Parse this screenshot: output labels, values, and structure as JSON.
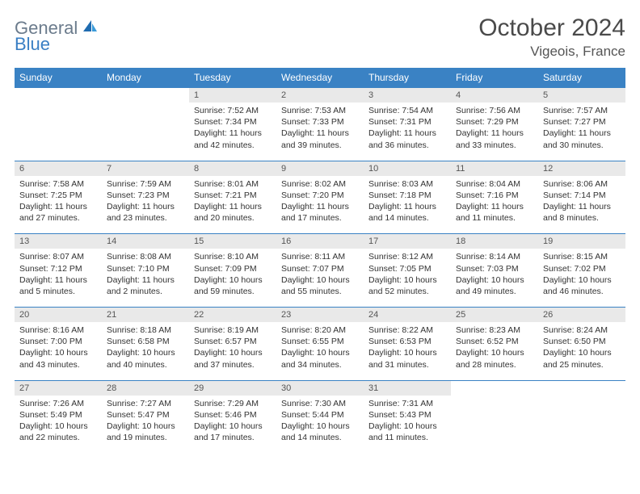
{
  "logo": {
    "text1": "General",
    "text2": "Blue",
    "color1": "#6b7b8c",
    "color2": "#3a7fc4"
  },
  "title": "October 2024",
  "location": "Vigeois, France",
  "header_bg": "#3a82c4",
  "daynum_bg": "#e9e9e9",
  "divider_color": "#3a82c4",
  "weekdays": [
    "Sunday",
    "Monday",
    "Tuesday",
    "Wednesday",
    "Thursday",
    "Friday",
    "Saturday"
  ],
  "weeks": [
    {
      "nums": [
        "",
        "",
        "1",
        "2",
        "3",
        "4",
        "5"
      ],
      "cells": [
        null,
        null,
        {
          "sunrise": "Sunrise: 7:52 AM",
          "sunset": "Sunset: 7:34 PM",
          "day1": "Daylight: 11 hours",
          "day2": "and 42 minutes."
        },
        {
          "sunrise": "Sunrise: 7:53 AM",
          "sunset": "Sunset: 7:33 PM",
          "day1": "Daylight: 11 hours",
          "day2": "and 39 minutes."
        },
        {
          "sunrise": "Sunrise: 7:54 AM",
          "sunset": "Sunset: 7:31 PM",
          "day1": "Daylight: 11 hours",
          "day2": "and 36 minutes."
        },
        {
          "sunrise": "Sunrise: 7:56 AM",
          "sunset": "Sunset: 7:29 PM",
          "day1": "Daylight: 11 hours",
          "day2": "and 33 minutes."
        },
        {
          "sunrise": "Sunrise: 7:57 AM",
          "sunset": "Sunset: 7:27 PM",
          "day1": "Daylight: 11 hours",
          "day2": "and 30 minutes."
        }
      ]
    },
    {
      "nums": [
        "6",
        "7",
        "8",
        "9",
        "10",
        "11",
        "12"
      ],
      "cells": [
        {
          "sunrise": "Sunrise: 7:58 AM",
          "sunset": "Sunset: 7:25 PM",
          "day1": "Daylight: 11 hours",
          "day2": "and 27 minutes."
        },
        {
          "sunrise": "Sunrise: 7:59 AM",
          "sunset": "Sunset: 7:23 PM",
          "day1": "Daylight: 11 hours",
          "day2": "and 23 minutes."
        },
        {
          "sunrise": "Sunrise: 8:01 AM",
          "sunset": "Sunset: 7:21 PM",
          "day1": "Daylight: 11 hours",
          "day2": "and 20 minutes."
        },
        {
          "sunrise": "Sunrise: 8:02 AM",
          "sunset": "Sunset: 7:20 PM",
          "day1": "Daylight: 11 hours",
          "day2": "and 17 minutes."
        },
        {
          "sunrise": "Sunrise: 8:03 AM",
          "sunset": "Sunset: 7:18 PM",
          "day1": "Daylight: 11 hours",
          "day2": "and 14 minutes."
        },
        {
          "sunrise": "Sunrise: 8:04 AM",
          "sunset": "Sunset: 7:16 PM",
          "day1": "Daylight: 11 hours",
          "day2": "and 11 minutes."
        },
        {
          "sunrise": "Sunrise: 8:06 AM",
          "sunset": "Sunset: 7:14 PM",
          "day1": "Daylight: 11 hours",
          "day2": "and 8 minutes."
        }
      ]
    },
    {
      "nums": [
        "13",
        "14",
        "15",
        "16",
        "17",
        "18",
        "19"
      ],
      "cells": [
        {
          "sunrise": "Sunrise: 8:07 AM",
          "sunset": "Sunset: 7:12 PM",
          "day1": "Daylight: 11 hours",
          "day2": "and 5 minutes."
        },
        {
          "sunrise": "Sunrise: 8:08 AM",
          "sunset": "Sunset: 7:10 PM",
          "day1": "Daylight: 11 hours",
          "day2": "and 2 minutes."
        },
        {
          "sunrise": "Sunrise: 8:10 AM",
          "sunset": "Sunset: 7:09 PM",
          "day1": "Daylight: 10 hours",
          "day2": "and 59 minutes."
        },
        {
          "sunrise": "Sunrise: 8:11 AM",
          "sunset": "Sunset: 7:07 PM",
          "day1": "Daylight: 10 hours",
          "day2": "and 55 minutes."
        },
        {
          "sunrise": "Sunrise: 8:12 AM",
          "sunset": "Sunset: 7:05 PM",
          "day1": "Daylight: 10 hours",
          "day2": "and 52 minutes."
        },
        {
          "sunrise": "Sunrise: 8:14 AM",
          "sunset": "Sunset: 7:03 PM",
          "day1": "Daylight: 10 hours",
          "day2": "and 49 minutes."
        },
        {
          "sunrise": "Sunrise: 8:15 AM",
          "sunset": "Sunset: 7:02 PM",
          "day1": "Daylight: 10 hours",
          "day2": "and 46 minutes."
        }
      ]
    },
    {
      "nums": [
        "20",
        "21",
        "22",
        "23",
        "24",
        "25",
        "26"
      ],
      "cells": [
        {
          "sunrise": "Sunrise: 8:16 AM",
          "sunset": "Sunset: 7:00 PM",
          "day1": "Daylight: 10 hours",
          "day2": "and 43 minutes."
        },
        {
          "sunrise": "Sunrise: 8:18 AM",
          "sunset": "Sunset: 6:58 PM",
          "day1": "Daylight: 10 hours",
          "day2": "and 40 minutes."
        },
        {
          "sunrise": "Sunrise: 8:19 AM",
          "sunset": "Sunset: 6:57 PM",
          "day1": "Daylight: 10 hours",
          "day2": "and 37 minutes."
        },
        {
          "sunrise": "Sunrise: 8:20 AM",
          "sunset": "Sunset: 6:55 PM",
          "day1": "Daylight: 10 hours",
          "day2": "and 34 minutes."
        },
        {
          "sunrise": "Sunrise: 8:22 AM",
          "sunset": "Sunset: 6:53 PM",
          "day1": "Daylight: 10 hours",
          "day2": "and 31 minutes."
        },
        {
          "sunrise": "Sunrise: 8:23 AM",
          "sunset": "Sunset: 6:52 PM",
          "day1": "Daylight: 10 hours",
          "day2": "and 28 minutes."
        },
        {
          "sunrise": "Sunrise: 8:24 AM",
          "sunset": "Sunset: 6:50 PM",
          "day1": "Daylight: 10 hours",
          "day2": "and 25 minutes."
        }
      ]
    },
    {
      "nums": [
        "27",
        "28",
        "29",
        "30",
        "31",
        "",
        ""
      ],
      "cells": [
        {
          "sunrise": "Sunrise: 7:26 AM",
          "sunset": "Sunset: 5:49 PM",
          "day1": "Daylight: 10 hours",
          "day2": "and 22 minutes."
        },
        {
          "sunrise": "Sunrise: 7:27 AM",
          "sunset": "Sunset: 5:47 PM",
          "day1": "Daylight: 10 hours",
          "day2": "and 19 minutes."
        },
        {
          "sunrise": "Sunrise: 7:29 AM",
          "sunset": "Sunset: 5:46 PM",
          "day1": "Daylight: 10 hours",
          "day2": "and 17 minutes."
        },
        {
          "sunrise": "Sunrise: 7:30 AM",
          "sunset": "Sunset: 5:44 PM",
          "day1": "Daylight: 10 hours",
          "day2": "and 14 minutes."
        },
        {
          "sunrise": "Sunrise: 7:31 AM",
          "sunset": "Sunset: 5:43 PM",
          "day1": "Daylight: 10 hours",
          "day2": "and 11 minutes."
        },
        null,
        null
      ]
    }
  ]
}
